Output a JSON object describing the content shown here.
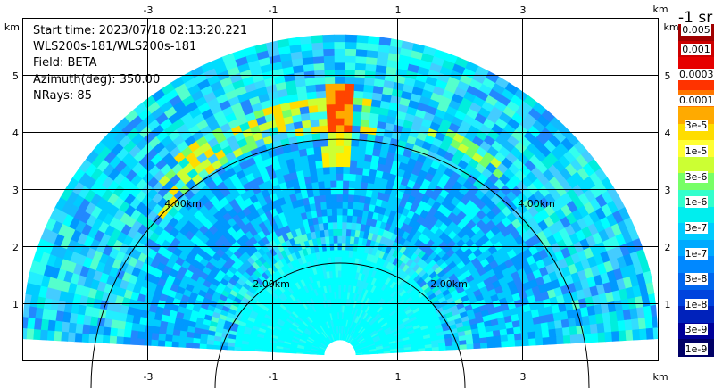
{
  "info": {
    "start_time": "Start time: 2023/07/18 02:13:20.221",
    "site": "WLS200s-181/WLS200s-181",
    "field": "Field: BETA",
    "azimuth": "Azimuth(deg): 350.00",
    "nrays": "NRays: 85"
  },
  "axes": {
    "unit": "km",
    "x_ticks": [
      "-3",
      "-1",
      "1",
      "3"
    ],
    "y_ticks": [
      "5",
      "4",
      "3",
      "2",
      "1"
    ]
  },
  "range_rings": [
    "4.00km",
    "4.00km",
    "2.00km",
    "2.00km"
  ],
  "colorbar": {
    "title": "-1 sr",
    "labels": [
      "0.005",
      "0.001",
      "0.0003",
      "0.0001",
      "3e-5",
      "1e-5",
      "3e-6",
      "1e-6",
      "3e-7",
      "1e-7",
      "3e-8",
      "1e-8",
      "3e-9",
      "1e-9"
    ],
    "colors": [
      "#a00000",
      "#cc0000",
      "#e60000",
      "#ff3300",
      "#ff7700",
      "#ffaa00",
      "#ffdd00",
      "#ffff33",
      "#ccff33",
      "#77ff66",
      "#33ffcc",
      "#00eeee",
      "#00ccff",
      "#00aaff",
      "#0088ff",
      "#0066ee",
      "#0044dd",
      "#0022bb",
      "#000099",
      "#000066"
    ]
  }
}
